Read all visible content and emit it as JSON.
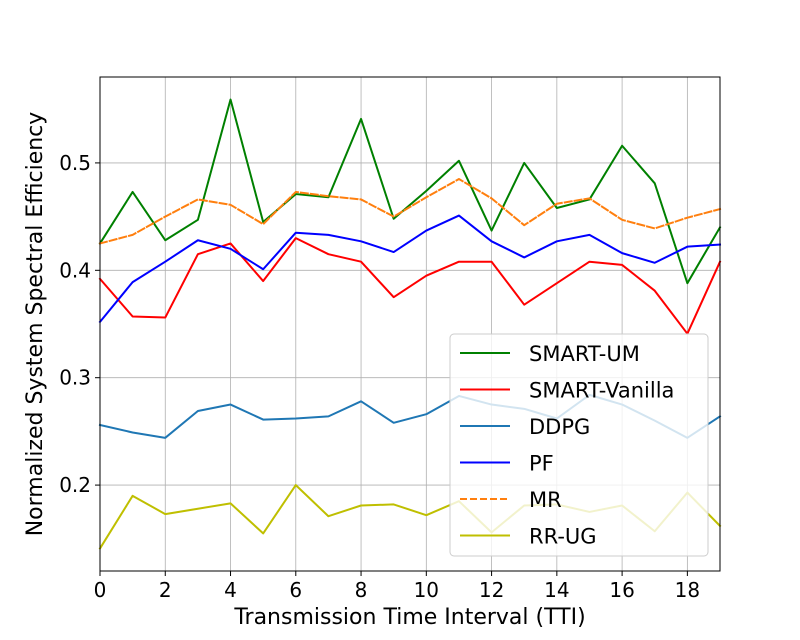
{
  "chart_data": {
    "type": "line",
    "title": "",
    "xlabel": "Transmission Time Interval (TTI)",
    "ylabel": "Normalized System Spectral Efficiency",
    "xlim": [
      0,
      19
    ],
    "ylim": [
      0.12,
      0.58
    ],
    "x_ticks": [
      "0",
      "2",
      "4",
      "6",
      "8",
      "10",
      "12",
      "14",
      "16",
      "18"
    ],
    "y_ticks": [
      "0.2",
      "0.3",
      "0.4",
      "0.5"
    ],
    "grid": true,
    "legend_position": "lower-right",
    "x": [
      0,
      1,
      2,
      3,
      4,
      5,
      6,
      7,
      8,
      9,
      10,
      11,
      12,
      13,
      14,
      15,
      16,
      17,
      18,
      19
    ],
    "series": [
      {
        "name": "SMART-UM",
        "color": "#008000",
        "dashed": false,
        "values": [
          0.425,
          0.473,
          0.428,
          0.447,
          0.559,
          0.445,
          0.471,
          0.468,
          0.541,
          0.448,
          0.474,
          0.502,
          0.437,
          0.5,
          0.458,
          0.466,
          0.516,
          0.481,
          0.388,
          0.44
        ]
      },
      {
        "name": "SMART-Vanilla",
        "color": "#ff0000",
        "dashed": false,
        "values": [
          0.392,
          0.357,
          0.356,
          0.415,
          0.425,
          0.39,
          0.43,
          0.415,
          0.408,
          0.375,
          0.395,
          0.408,
          0.408,
          0.368,
          0.388,
          0.408,
          0.405,
          0.381,
          0.341,
          0.408
        ]
      },
      {
        "name": "DDPG",
        "color": "#1f77b4",
        "dashed": false,
        "values": [
          0.256,
          0.249,
          0.244,
          0.269,
          0.275,
          0.261,
          0.262,
          0.264,
          0.278,
          0.258,
          0.266,
          0.283,
          0.275,
          0.271,
          0.262,
          0.284,
          0.275,
          0.26,
          0.244,
          0.264
        ]
      },
      {
        "name": "PF",
        "color": "#0000ff",
        "dashed": false,
        "values": [
          0.352,
          0.389,
          0.408,
          0.428,
          0.42,
          0.401,
          0.435,
          0.433,
          0.427,
          0.417,
          0.437,
          0.451,
          0.427,
          0.412,
          0.427,
          0.433,
          0.416,
          0.407,
          0.422,
          0.424
        ]
      },
      {
        "name": "MR",
        "color": "#ff7f0e",
        "dashed": true,
        "values": [
          0.425,
          0.433,
          0.45,
          0.466,
          0.461,
          0.443,
          0.473,
          0.469,
          0.466,
          0.45,
          0.468,
          0.485,
          0.467,
          0.442,
          0.462,
          0.467,
          0.447,
          0.439,
          0.449,
          0.457
        ]
      },
      {
        "name": "RR-UG",
        "color": "#bfbf00",
        "dashed": false,
        "values": [
          0.141,
          0.19,
          0.173,
          0.178,
          0.183,
          0.155,
          0.2,
          0.171,
          0.181,
          0.182,
          0.172,
          0.185,
          0.156,
          0.181,
          0.182,
          0.175,
          0.181,
          0.157,
          0.193,
          0.162
        ]
      }
    ]
  }
}
